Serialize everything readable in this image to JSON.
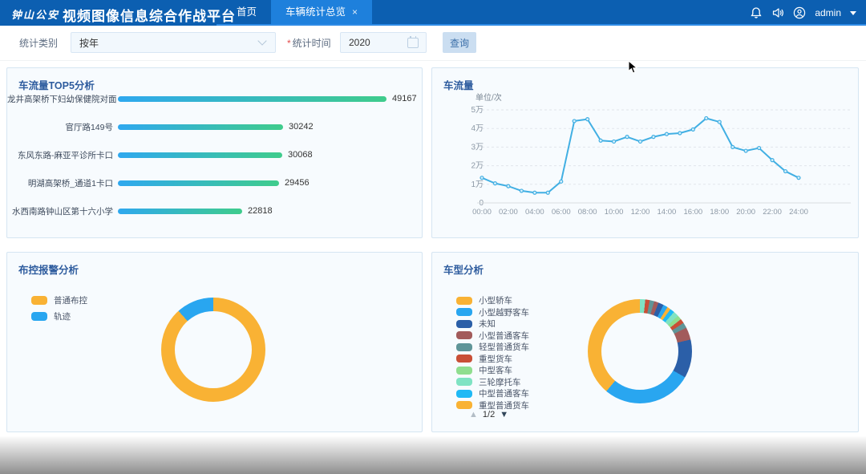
{
  "header": {
    "logo": "钟山公安",
    "title": "视频图像信息综合作战平台",
    "tabs": [
      {
        "label": "首页",
        "active": false,
        "closable": false
      },
      {
        "label": "车辆统计总览",
        "active": true,
        "closable": true
      }
    ],
    "close_glyph": "×",
    "user": "admin"
  },
  "filter": {
    "category_label": "统计类别",
    "category_value": "按年",
    "time_required_mark": "*",
    "time_label": "统计时间",
    "time_value": "2020",
    "search_label": "查询"
  },
  "panels": {
    "top5_title": "车流量TOP5分析",
    "flow_title": "车流量",
    "flow_unit": "单位/次",
    "alarm_title": "布控报警分析",
    "vehicle_title": "车型分析",
    "vehicle_pager": {
      "up": "▲",
      "label": "1/2",
      "down": "▼"
    }
  },
  "chart_data": [
    {
      "id": "top5",
      "type": "bar",
      "orientation": "horizontal",
      "title": "车流量TOP5分析",
      "categories": [
        "龙井高架桥下妇幼保健院对面",
        "官厅路149号",
        "东风东路-麻亚平诊所卡口",
        "明湖高架桥_通道1卡口",
        "水西南路钟山区第十六小学"
      ],
      "values": [
        49167,
        30242,
        30068,
        29456,
        22818
      ],
      "bar_gradient": [
        "#2FA8EF",
        "#3FCC8C"
      ]
    },
    {
      "id": "flow",
      "type": "line",
      "title": "车流量",
      "ylabel": "单位/次",
      "yticks": [
        "5万",
        "4万",
        "3万",
        "2万",
        "1万",
        "0"
      ],
      "ylim": [
        0,
        50000
      ],
      "grid": true,
      "xticks": [
        "00:00",
        "02:00",
        "04:00",
        "06:00",
        "08:00",
        "10:00",
        "12:00",
        "14:00",
        "16:00",
        "18:00",
        "20:00",
        "22:00",
        "24:00"
      ],
      "values": [
        13500,
        10500,
        9000,
        6500,
        5500,
        5500,
        11500,
        44000,
        45000,
        33500,
        33000,
        35500,
        33000,
        35500,
        37000,
        37500,
        39500,
        45500,
        43500,
        30000,
        28000,
        29500,
        23000,
        17000,
        13500
      ],
      "color": "#41AFE3"
    },
    {
      "id": "alarm",
      "type": "pie",
      "title": "布控报警分析",
      "donut": true,
      "legend_position": "left",
      "slices": [
        {
          "label": "普通布控",
          "color": "#F9B234",
          "deg": 318,
          "pct": 88.3
        },
        {
          "label": "轨迹",
          "color": "#29A6F0",
          "deg": 42,
          "pct": 11.7
        }
      ],
      "legend": [
        {
          "label": "普通布控",
          "color": "#F9B234"
        },
        {
          "label": "轨迹",
          "color": "#29A6F0"
        }
      ]
    },
    {
      "id": "vehicle",
      "type": "pie",
      "title": "车型分析",
      "donut": true,
      "legend_position": "left",
      "legend_pager": "1/2",
      "slices": [
        {
          "label": "",
          "color": "#7FE3C3",
          "deg": 6
        },
        {
          "label": "",
          "color": "#C94F36",
          "deg": 5
        },
        {
          "label": "",
          "color": "#5F9598",
          "deg": 5
        },
        {
          "label": "",
          "color": "#A25B5B",
          "deg": 5
        },
        {
          "label": "",
          "color": "#2B5FA8",
          "deg": 6
        },
        {
          "label": "",
          "color": "#29A6F0",
          "deg": 5
        },
        {
          "label": "重型普通货车",
          "color": "#F9B234",
          "deg": 4,
          "pct": 1.1
        },
        {
          "label": "中型普通客车",
          "color": "#1FB9F5",
          "deg": 5,
          "pct": 1.4
        },
        {
          "label": "三轮摩托车",
          "color": "#7FE3C3",
          "deg": 6,
          "pct": 1.7
        },
        {
          "label": "中型客车",
          "color": "#8FDE8F",
          "deg": 5,
          "pct": 1.4
        },
        {
          "label": "重型货车",
          "color": "#C94F36",
          "deg": 5,
          "pct": 1.4
        },
        {
          "label": "轻型普通货车",
          "color": "#5F9598",
          "deg": 6,
          "pct": 1.7
        },
        {
          "label": "小型普通客车",
          "color": "#A25B5B",
          "deg": 14,
          "pct": 3.9
        },
        {
          "label": "未知",
          "color": "#2B5FA8",
          "deg": 43,
          "pct": 11.9
        },
        {
          "label": "小型越野客车",
          "color": "#29A6F0",
          "deg": 100,
          "pct": 27.8
        },
        {
          "label": "小型轿车",
          "color": "#F9B234",
          "deg": 140,
          "pct": 38.9
        }
      ],
      "legend": [
        {
          "label": "小型轿车",
          "color": "#F9B234"
        },
        {
          "label": "小型越野客车",
          "color": "#29A6F0"
        },
        {
          "label": "未知",
          "color": "#2B5FA8"
        },
        {
          "label": "小型普通客车",
          "color": "#A25B5B"
        },
        {
          "label": "轻型普通货车",
          "color": "#5F9598"
        },
        {
          "label": "重型货车",
          "color": "#C94F36"
        },
        {
          "label": "中型客车",
          "color": "#8FDE8F"
        },
        {
          "label": "三轮摩托车",
          "color": "#7FE3C3"
        },
        {
          "label": "中型普通客车",
          "color": "#1FB9F5"
        },
        {
          "label": "重型普通货车",
          "color": "#F9B234"
        }
      ]
    }
  ]
}
